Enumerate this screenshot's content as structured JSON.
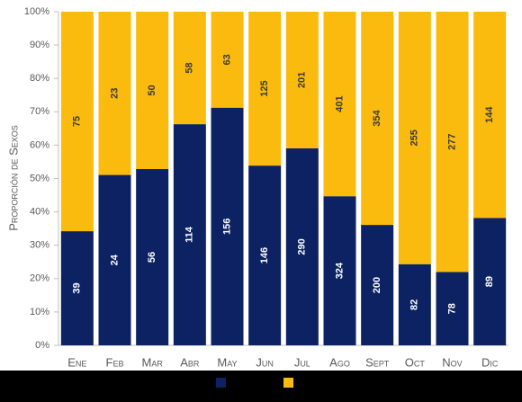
{
  "chart_data": {
    "type": "bar",
    "stacking": "percent",
    "y_label": "Proporción de Sexos",
    "categories": [
      "Ene",
      "Feb",
      "Mar",
      "Abr",
      "May",
      "Jun",
      "Jul",
      "Ago",
      "Sept",
      "Oct",
      "Nov",
      "Dic"
    ],
    "series": [
      {
        "color": "#0d2262",
        "label_color": "#ffffff",
        "values": [
          39,
          24,
          56,
          114,
          156,
          146,
          290,
          324,
          200,
          82,
          78,
          89
        ]
      },
      {
        "color": "#fbbb0e",
        "label_color": "#3a3a3a",
        "values": [
          75,
          23,
          50,
          58,
          63,
          125,
          201,
          401,
          354,
          255,
          277,
          144
        ]
      }
    ],
    "ylim": [
      0,
      100
    ],
    "yticks": [
      {
        "value": 0,
        "label": "0%"
      },
      {
        "value": 10,
        "label": "10%"
      },
      {
        "value": 20,
        "label": "20%"
      },
      {
        "value": 30,
        "label": "30%"
      },
      {
        "value": 40,
        "label": "40%"
      },
      {
        "value": 50,
        "label": "50%"
      },
      {
        "value": 60,
        "label": "60%"
      },
      {
        "value": 70,
        "label": "70%"
      },
      {
        "value": 80,
        "label": "80%"
      },
      {
        "value": 90,
        "label": "90%"
      },
      {
        "value": 100,
        "label": "100%"
      }
    ],
    "legend": "bottom"
  }
}
